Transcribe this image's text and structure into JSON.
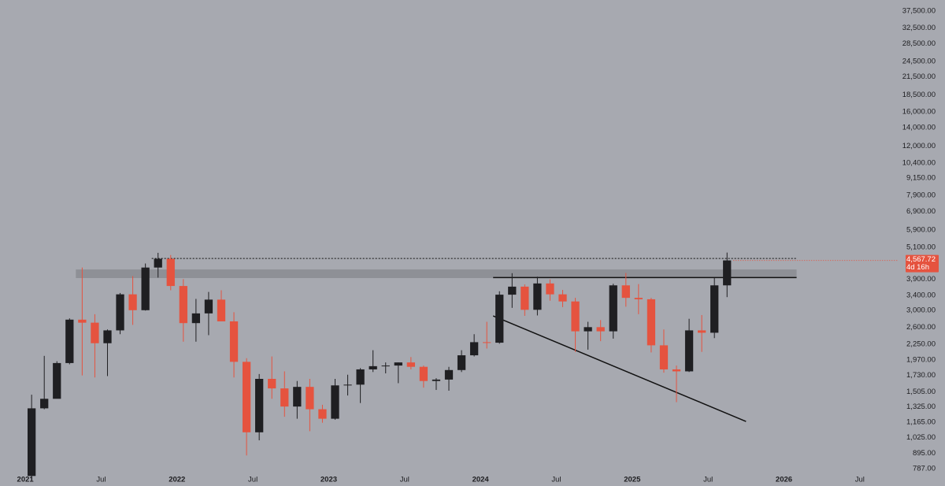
{
  "chart_data": {
    "type": "candlestick",
    "x": [
      "2021-01",
      "2021-02",
      "2021-03",
      "2021-04",
      "2021-05",
      "2021-06",
      "2021-07",
      "2021-08",
      "2021-09",
      "2021-10",
      "2021-11",
      "2021-12",
      "2022-01",
      "2022-02",
      "2022-03",
      "2022-04",
      "2022-05",
      "2022-06",
      "2022-07",
      "2022-08",
      "2022-09",
      "2022-10",
      "2022-11",
      "2022-12",
      "2023-01",
      "2023-02",
      "2023-03",
      "2023-04",
      "2023-05",
      "2023-06",
      "2023-07",
      "2023-08",
      "2023-09",
      "2023-10",
      "2023-11",
      "2023-12",
      "2024-01",
      "2024-02",
      "2024-03",
      "2024-04",
      "2024-05",
      "2024-06",
      "2024-07",
      "2024-08",
      "2024-09",
      "2024-10",
      "2024-11",
      "2024-12",
      "2025-01",
      "2025-02",
      "2025-03",
      "2025-04",
      "2025-05",
      "2025-06",
      "2025-07",
      "2025-08"
    ],
    "open": [
      740,
      1310,
      1420,
      1920,
      2770,
      2700,
      2270,
      2530,
      3430,
      3000,
      4300,
      4630,
      3680,
      2690,
      2920,
      3280,
      2730,
      1940,
      1070,
      1680,
      1550,
      1330,
      1570,
      1300,
      1200,
      1590,
      1600,
      1820,
      1870,
      1880,
      1930,
      1860,
      1650,
      1670,
      1810,
      2050,
      2290,
      2280,
      3420,
      3660,
      3010,
      3760,
      3430,
      3230,
      2510,
      2600,
      2510,
      3700,
      3330,
      3290,
      2230,
      1820,
      1790,
      2530,
      2480,
      3700
    ],
    "high": [
      1470,
      2040,
      1950,
      2800,
      4300,
      2900,
      2550,
      3470,
      4000,
      4450,
      4870,
      4780,
      3900,
      3300,
      3500,
      3550,
      2950,
      2000,
      1750,
      2030,
      1790,
      1650,
      1680,
      1350,
      1680,
      1740,
      1840,
      2140,
      1930,
      1930,
      2020,
      1880,
      1690,
      1860,
      2140,
      2450,
      2720,
      3520,
      4100,
      3730,
      3980,
      3890,
      3560,
      3330,
      2720,
      2760,
      3750,
      4110,
      3740,
      3330,
      2550,
      1880,
      2790,
      2880,
      3940,
      4880
    ],
    "low": [
      720,
      1300,
      1450,
      1900,
      1730,
      1700,
      1720,
      2450,
      2650,
      2990,
      3950,
      3550,
      2300,
      2300,
      2430,
      2750,
      1700,
      880,
      1000,
      1420,
      1220,
      1200,
      1080,
      1160,
      1190,
      1460,
      1370,
      1780,
      1760,
      1620,
      1820,
      1560,
      1530,
      1520,
      1780,
      2030,
      2170,
      2260,
      3060,
      2860,
      2870,
      3250,
      3080,
      2110,
      2150,
      2310,
      2360,
      3090,
      2900,
      2100,
      1770,
      1380,
      1780,
      2110,
      2370,
      3350
    ],
    "close": [
      1310,
      1420,
      1920,
      2770,
      2700,
      2270,
      2530,
      3430,
      3000,
      4300,
      4630,
      3680,
      2690,
      2920,
      3280,
      2730,
      1940,
      1070,
      1680,
      1550,
      1330,
      1570,
      1300,
      1200,
      1590,
      1600,
      1820,
      1870,
      1880,
      1930,
      1860,
      1650,
      1670,
      1810,
      2050,
      2290,
      2280,
      3420,
      3660,
      3010,
      3760,
      3430,
      3230,
      2510,
      2600,
      2510,
      3700,
      3330,
      3290,
      2230,
      1820,
      1790,
      2530,
      2480,
      3700,
      4567.72
    ],
    "up_color": "#1f1f22",
    "down_color": "#e5533f",
    "log_scale": true,
    "ylim": [
      680,
      41160
    ],
    "yticks": [
      {
        "value": 787,
        "label": "787.00"
      },
      {
        "value": 895,
        "label": "895.00"
      },
      {
        "value": 1025,
        "label": "1,025.00"
      },
      {
        "value": 1165,
        "label": "1,165.00"
      },
      {
        "value": 1325,
        "label": "1,325.00"
      },
      {
        "value": 1505,
        "label": "1,505.00"
      },
      {
        "value": 1730,
        "label": "1,730.00"
      },
      {
        "value": 1970,
        "label": "1,970.00"
      },
      {
        "value": 2250,
        "label": "2,250.00"
      },
      {
        "value": 2600,
        "label": "2,600.00"
      },
      {
        "value": 3000,
        "label": "3,000.00"
      },
      {
        "value": 3400,
        "label": "3,400.00"
      },
      {
        "value": 3900,
        "label": "3,900.00"
      },
      {
        "value": 5100,
        "label": "5,100.00"
      },
      {
        "value": 5900,
        "label": "5,900.00"
      },
      {
        "value": 6900,
        "label": "6,900.00"
      },
      {
        "value": 7900,
        "label": "7,900.00"
      },
      {
        "value": 9150,
        "label": "9,150.00"
      },
      {
        "value": 10400,
        "label": "10,400.00"
      },
      {
        "value": 12000,
        "label": "12,000.00"
      },
      {
        "value": 14000,
        "label": "14,000.00"
      },
      {
        "value": 16000,
        "label": "16,000.00"
      },
      {
        "value": 18500,
        "label": "18,500.00"
      },
      {
        "value": 21500,
        "label": "21,500.00"
      },
      {
        "value": 24500,
        "label": "24,500.00"
      },
      {
        "value": 28500,
        "label": "28,500.00"
      },
      {
        "value": 32500,
        "label": "32,500.00"
      },
      {
        "value": 37500,
        "label": "37,500.00"
      }
    ],
    "xlim": [
      "2020-11",
      "2026-10"
    ],
    "xticks": [
      {
        "value": "2021-01",
        "label": "2021"
      },
      {
        "value": "2021-07",
        "label": "Jul"
      },
      {
        "value": "2022-01",
        "label": "2022"
      },
      {
        "value": "2022-07",
        "label": "Jul"
      },
      {
        "value": "2023-01",
        "label": "2023"
      },
      {
        "value": "2023-07",
        "label": "Jul"
      },
      {
        "value": "2024-01",
        "label": "2024"
      },
      {
        "value": "2024-07",
        "label": "Jul"
      },
      {
        "value": "2025-01",
        "label": "2025"
      },
      {
        "value": "2025-07",
        "label": "Jul"
      },
      {
        "value": "2026-01",
        "label": "2026"
      },
      {
        "value": "2026-07",
        "label": "Jul"
      }
    ],
    "last_price": {
      "value": 4567.72,
      "label": "4,567.72",
      "countdown": "4d 16h"
    },
    "zone": {
      "x": [
        "2021-05",
        "2026-02"
      ],
      "y": [
        3935,
        4232
      ],
      "color": "#8e9096"
    },
    "lines": [
      {
        "style": "dotted",
        "x": [
          "2021-11",
          "2026-02"
        ],
        "y": [
          4645,
          4645
        ]
      },
      {
        "style": "solid",
        "x": [
          "2024-02",
          "2026-02"
        ],
        "y": [
          3950,
          3950
        ]
      },
      {
        "style": "solid",
        "x": [
          "2024-02",
          "2025-10"
        ],
        "y": [
          2859,
          1173
        ]
      }
    ]
  }
}
